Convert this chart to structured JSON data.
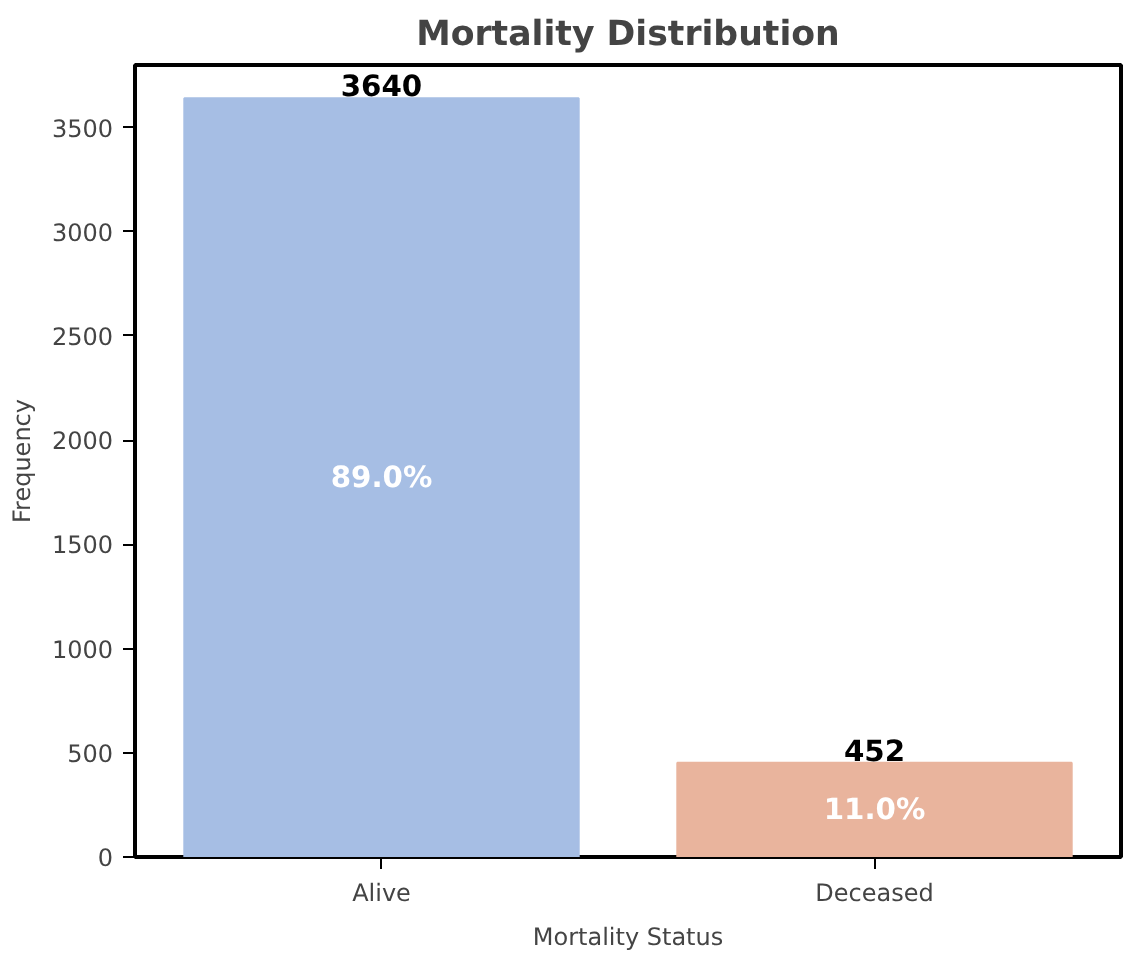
{
  "chart_data": {
    "type": "bar",
    "title": "Mortality Distribution",
    "xlabel": "Mortality Status",
    "ylabel": "Frequency",
    "categories": [
      "Alive",
      "Deceased"
    ],
    "values": [
      3640,
      452
    ],
    "colors": [
      "#a6bee4",
      "#e9b49d"
    ],
    "ylim": [
      0,
      3800
    ],
    "yticks": [
      0,
      500,
      1000,
      1500,
      2000,
      2500,
      3000,
      3500
    ],
    "grid": false,
    "data_labels": true,
    "annotations": [
      "89.0%",
      "11.0%"
    ]
  }
}
